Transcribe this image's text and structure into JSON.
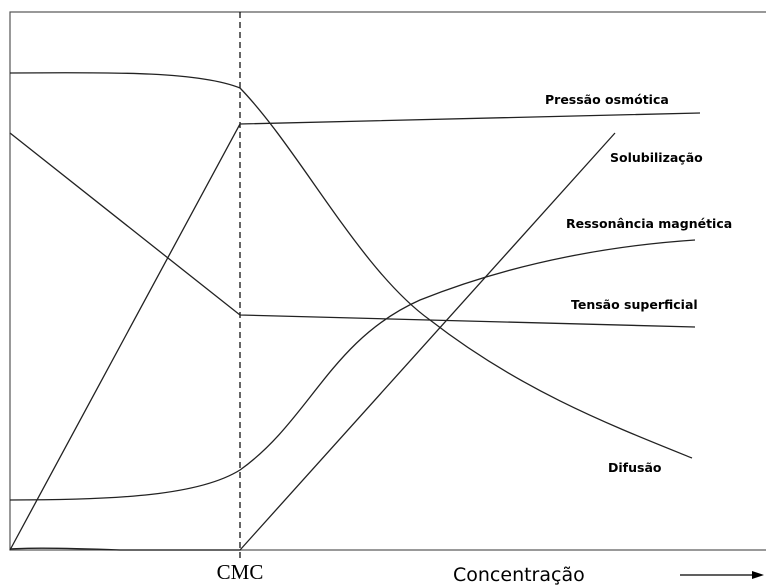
{
  "curves": {
    "osmotic": "Pressão osmótica",
    "solubilization": "Solubilização",
    "resonance": "Ressonância magnética",
    "surface_tension": "Tensão superficial",
    "diffusion": "Difusão"
  },
  "axis": {
    "marker": "CMC",
    "x_label": "Concentração"
  }
}
